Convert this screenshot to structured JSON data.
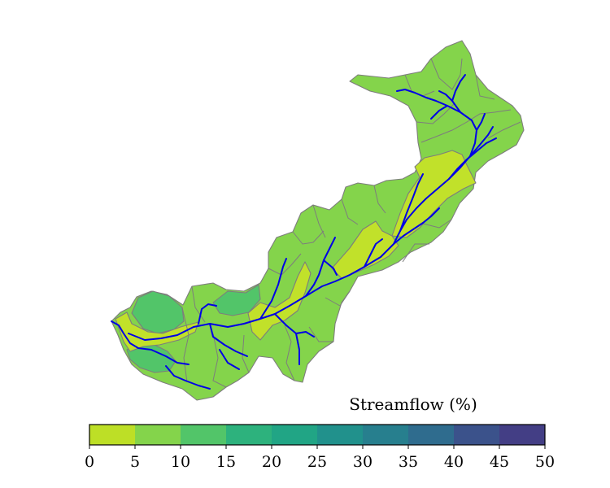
{
  "map": {
    "variable_label": "Streamflow (%)",
    "colorbar": {
      "ticks": [
        "0",
        "5",
        "10",
        "15",
        "20",
        "25",
        "30",
        "35",
        "40",
        "45",
        "50"
      ],
      "bin_colors": [
        "#bddf26",
        "#84d44b",
        "#52c569",
        "#2db27d",
        "#21a585",
        "#21918c",
        "#277f8e",
        "#2f6c8e",
        "#3b528b",
        "#433e85",
        "#482475"
      ],
      "range": [
        0,
        50
      ]
    },
    "region_classes": [
      {
        "name": "0-5",
        "color": "#c1e12a"
      },
      {
        "name": "5-10",
        "color": "#84d44b"
      },
      {
        "name": "10-15",
        "color": "#52c569"
      },
      {
        "name": "15-20",
        "color": "#3bba74"
      }
    ],
    "stream_color": "#0000e6",
    "boundary_color": "#7d7d7d"
  }
}
